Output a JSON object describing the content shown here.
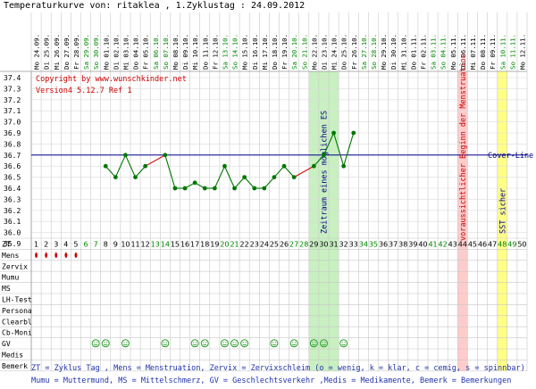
{
  "title": "Temperaturkurve von: ritaklea , 1.Zyklustag : 24.09.2012",
  "copyright": "Copyright by www.wunschkinder.net",
  "version": "Version4 5.12.7 Ref 1",
  "footer": {
    "line1": "ZT = Zyklus Tag , Mens = Menstruation, Zervix = Zervixschleim (o = wenig, k = klar, c = cemig, s = spinnbar)",
    "line2": "Mumu = Muttermund, MS = Mittelschmerz, GV = Geschlechtsverkehr ,Medis = Medikamente, Bemerk = Bemerkungen"
  },
  "colors": {
    "green_day": "#008800",
    "red_zone": "#ffcccc",
    "green_zone": "#c8f0c0",
    "yellow_zone": "#ffff88",
    "temp_line_green": "#007700",
    "temp_line_red": "#cc0000",
    "cover_line": "#000088",
    "red_text": "#cc0000",
    "blue_text": "#000088"
  },
  "chart_data": {
    "type": "line",
    "dates": [
      "Mo 24.09.",
      "Di 25.09.",
      "Mi 26.09.",
      "Do 27.09.",
      "Fr 28.09.",
      "Sa 29.09.",
      "So 30.09.",
      "Mo 01.10.",
      "Di 02.10.",
      "Mi 03.10.",
      "Do 04.10.",
      "Fr 05.10.",
      "Sa 06.10.",
      "So 07.10.",
      "Mo 08.10.",
      "Di 09.10.",
      "Mi 10.10.",
      "Do 11.10.",
      "Fr 12.10.",
      "Sa 13.10.",
      "So 14.10.",
      "Mo 15.10.",
      "Di 16.10.",
      "Mi 17.10.",
      "Do 18.10.",
      "Fr 19.10.",
      "Sa 20.10.",
      "So 21.10.",
      "Mo 22.10.",
      "Di 23.10.",
      "Mi 24.10.",
      "Do 25.10.",
      "Fr 26.10.",
      "Sa 27.10.",
      "So 28.10.",
      "Mo 29.10.",
      "Di 30.10.",
      "Mi 31.10.",
      "Do 01.11.",
      "Fr 02.11.",
      "Sa 03.11.",
      "So 04.11.",
      "Mo 05.11.",
      "Di 06.11.",
      "Mi 07.11.",
      "Do 08.11.",
      "Fr 09.11.",
      "Sa 10.11.",
      "So 11.11.",
      "Mo 12.11."
    ],
    "cycle_days": [
      1,
      2,
      3,
      4,
      5,
      6,
      7,
      8,
      9,
      10,
      11,
      12,
      13,
      14,
      15,
      16,
      17,
      18,
      19,
      20,
      21,
      22,
      23,
      24,
      25,
      26,
      27,
      28,
      29,
      30,
      31,
      32,
      33,
      34,
      35,
      36,
      37,
      38,
      39,
      40,
      41,
      42,
      43,
      44,
      45,
      46,
      47,
      48,
      49,
      50
    ],
    "green_days": [
      6,
      7,
      13,
      14,
      20,
      21,
      27,
      28,
      34,
      35,
      41,
      42,
      48,
      49
    ],
    "temperatures": [
      null,
      null,
      null,
      null,
      null,
      null,
      null,
      36.6,
      36.5,
      36.7,
      36.5,
      36.6,
      null,
      36.7,
      36.4,
      36.4,
      36.45,
      36.4,
      36.4,
      36.6,
      36.4,
      36.5,
      36.4,
      36.4,
      36.5,
      36.6,
      36.5,
      null,
      36.6,
      36.7,
      36.9,
      36.6,
      36.9
    ],
    "red_segments": [
      [
        12,
        14
      ],
      [
        27,
        29
      ]
    ],
    "y_ticks": [
      "37.4",
      "37.3",
      "37.2",
      "37.1",
      "37.0",
      "36.9",
      "36.8",
      "36.7",
      "36.6",
      "36.5",
      "36.4",
      "36.3",
      "36.2",
      "36.1",
      "36.0",
      "35.9"
    ],
    "ylim": [
      35.9,
      37.4
    ],
    "cover_line": 36.7,
    "cover_line_label": "Cover-Line",
    "zones": [
      {
        "from": 29,
        "to": 31,
        "kind": "green",
        "label": "Zeitraum eines möglichen ES"
      },
      {
        "from": 44,
        "to": 44,
        "kind": "red",
        "label": "voraussichtlicher Beginn der Menstruation"
      },
      {
        "from": 48,
        "to": 48,
        "kind": "yellow",
        "label": "SST sicher"
      }
    ],
    "row_labels": [
      "ZT",
      "Mens",
      "Zervix",
      "Mumu",
      "MS",
      "LH-Test",
      "Persona",
      "Clearbl",
      "Cb-Moni",
      "GV",
      "Medis",
      "Bemerk"
    ],
    "mens_days": [
      1,
      2,
      3,
      4,
      5
    ],
    "gv_days": [
      7,
      8,
      10,
      14,
      17,
      18,
      20,
      21,
      22,
      25,
      27,
      29,
      30,
      32
    ]
  }
}
